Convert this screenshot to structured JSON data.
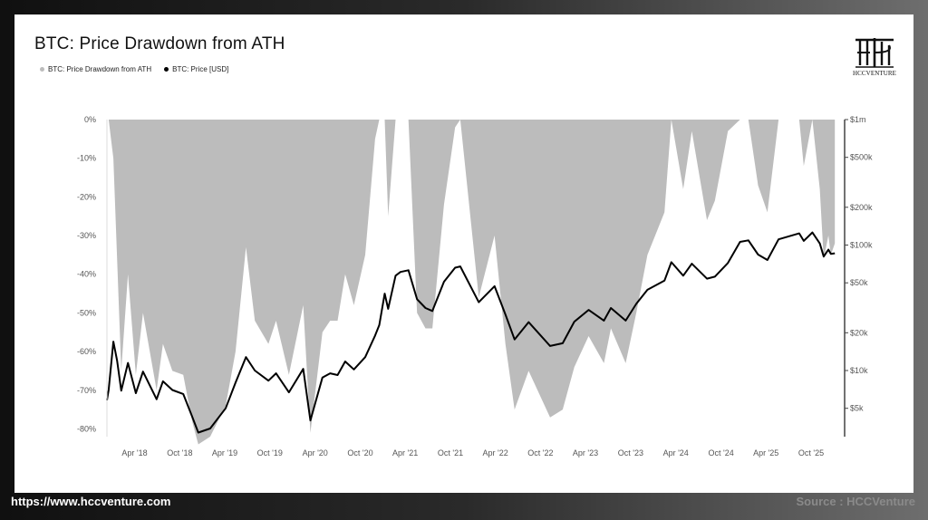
{
  "title": "BTC: Price Drawdown from ATH",
  "logo_text": "HCCVENTURE",
  "footer": {
    "url": "https://www.hccventure.com",
    "source": "Source : HCCVenture"
  },
  "colors": {
    "drawdown": "#bcbcbc",
    "price": "#000000",
    "axis": "#555555"
  },
  "chart_data": {
    "type": "area",
    "title": "BTC: Price Drawdown from ATH",
    "legend_position": "top-left",
    "grid": false,
    "x_ticks": [
      "Apr '18",
      "Oct '18",
      "Apr '19",
      "Oct '19",
      "Apr '20",
      "Oct '20",
      "Apr '21",
      "Oct '21",
      "Apr '22",
      "Oct '22",
      "Apr '23",
      "Oct '23",
      "Apr '24",
      "Oct '24",
      "Apr '25",
      "Oct '25"
    ],
    "left_axis": {
      "ticks": [
        "0%",
        "-10%",
        "-20%",
        "-30%",
        "-40%",
        "-50%",
        "-60%",
        "-70%",
        "-80%"
      ],
      "ylim": [
        -82,
        0
      ],
      "unit": "%"
    },
    "right_axis": {
      "scale": "log",
      "ticks": [
        "$1m",
        "$500k",
        "$200k",
        "$100k",
        "$50k",
        "$20k",
        "$10k",
        "$5k"
      ],
      "tick_values": [
        1000000,
        500000,
        200000,
        100000,
        50000,
        20000,
        10000,
        5000
      ]
    },
    "series": [
      {
        "name": "BTC: Price Drawdown from ATH",
        "axis": "left",
        "points": [
          [
            "2017-12-17",
            0
          ],
          [
            "2018-01-05",
            -10
          ],
          [
            "2018-02-06",
            -65
          ],
          [
            "2018-03-05",
            -40
          ],
          [
            "2018-04-06",
            -66
          ],
          [
            "2018-05-05",
            -50
          ],
          [
            "2018-06-29",
            -70
          ],
          [
            "2018-07-25",
            -58
          ],
          [
            "2018-09-01",
            -65
          ],
          [
            "2018-10-15",
            -66
          ],
          [
            "2018-11-20",
            -78
          ],
          [
            "2018-12-15",
            -84
          ],
          [
            "2019-02-01",
            -82
          ],
          [
            "2019-04-05",
            -74
          ],
          [
            "2019-05-15",
            -60
          ],
          [
            "2019-06-26",
            -33
          ],
          [
            "2019-08-01",
            -52
          ],
          [
            "2019-09-25",
            -58
          ],
          [
            "2019-10-26",
            -52
          ],
          [
            "2019-12-17",
            -66
          ],
          [
            "2020-02-13",
            -48
          ],
          [
            "2020-03-13",
            -81
          ],
          [
            "2020-05-01",
            -55
          ],
          [
            "2020-06-01",
            -52
          ],
          [
            "2020-07-01",
            -52
          ],
          [
            "2020-08-01",
            -40
          ],
          [
            "2020-09-05",
            -48
          ],
          [
            "2020-10-21",
            -35
          ],
          [
            "2020-11-30",
            -5
          ],
          [
            "2020-12-17",
            0
          ],
          [
            "2021-01-08",
            0
          ],
          [
            "2021-01-22",
            -25
          ],
          [
            "2021-02-21",
            0
          ],
          [
            "2021-03-13",
            0
          ],
          [
            "2021-04-14",
            0
          ],
          [
            "2021-05-19",
            -50
          ],
          [
            "2021-06-22",
            -54
          ],
          [
            "2021-07-20",
            -54
          ],
          [
            "2021-09-05",
            -22
          ],
          [
            "2021-10-20",
            -2
          ],
          [
            "2021-11-10",
            0
          ],
          [
            "2022-01-24",
            -46
          ],
          [
            "2022-03-29",
            -30
          ],
          [
            "2022-05-12",
            -58
          ],
          [
            "2022-06-18",
            -75
          ],
          [
            "2022-08-14",
            -65
          ],
          [
            "2022-11-09",
            -77
          ],
          [
            "2022-12-30",
            -75
          ],
          [
            "2023-02-15",
            -64
          ],
          [
            "2023-04-14",
            -56
          ],
          [
            "2023-06-15",
            -63
          ],
          [
            "2023-07-13",
            -54
          ],
          [
            "2023-09-11",
            -63
          ],
          [
            "2023-10-24",
            -50
          ],
          [
            "2023-12-08",
            -35
          ],
          [
            "2024-02-15",
            -24
          ],
          [
            "2024-03-14",
            0
          ],
          [
            "2024-05-01",
            -18
          ],
          [
            "2024-06-05",
            -3
          ],
          [
            "2024-08-05",
            -26
          ],
          [
            "2024-09-06",
            -21
          ],
          [
            "2024-10-29",
            -3
          ],
          [
            "2024-12-17",
            0
          ],
          [
            "2025-01-20",
            0
          ],
          [
            "2025-02-28",
            -17
          ],
          [
            "2025-04-07",
            -24
          ],
          [
            "2025-05-22",
            0
          ],
          [
            "2025-08-14",
            0
          ],
          [
            "2025-09-01",
            -12
          ],
          [
            "2025-10-06",
            0
          ],
          [
            "2025-11-05",
            -18
          ],
          [
            "2025-11-21",
            -36
          ],
          [
            "2025-12-10",
            -30
          ],
          [
            "2025-12-20",
            -35
          ],
          [
            "2026-01-05",
            -32
          ]
        ]
      },
      {
        "name": "BTC: Price [USD]",
        "axis": "right",
        "points": [
          [
            "2017-12-10",
            5800
          ],
          [
            "2017-12-17",
            7000
          ],
          [
            "2018-01-05",
            17000
          ],
          [
            "2018-01-20",
            12000
          ],
          [
            "2018-02-06",
            6900
          ],
          [
            "2018-03-05",
            11500
          ],
          [
            "2018-04-06",
            6600
          ],
          [
            "2018-05-05",
            9800
          ],
          [
            "2018-06-29",
            5900
          ],
          [
            "2018-07-25",
            8200
          ],
          [
            "2018-09-01",
            7000
          ],
          [
            "2018-10-15",
            6500
          ],
          [
            "2018-11-20",
            4300
          ],
          [
            "2018-12-15",
            3200
          ],
          [
            "2019-02-01",
            3450
          ],
          [
            "2019-04-05",
            5000
          ],
          [
            "2019-05-15",
            8000
          ],
          [
            "2019-06-26",
            12800
          ],
          [
            "2019-08-01",
            10000
          ],
          [
            "2019-09-25",
            8300
          ],
          [
            "2019-10-26",
            9500
          ],
          [
            "2019-12-17",
            6700
          ],
          [
            "2020-02-13",
            10300
          ],
          [
            "2020-03-13",
            4000
          ],
          [
            "2020-05-01",
            8800
          ],
          [
            "2020-06-01",
            9500
          ],
          [
            "2020-07-01",
            9200
          ],
          [
            "2020-08-01",
            11800
          ],
          [
            "2020-09-05",
            10200
          ],
          [
            "2020-10-21",
            12800
          ],
          [
            "2020-11-30",
            19000
          ],
          [
            "2020-12-17",
            23000
          ],
          [
            "2021-01-08",
            41000
          ],
          [
            "2021-01-22",
            31000
          ],
          [
            "2021-02-21",
            57000
          ],
          [
            "2021-03-13",
            61000
          ],
          [
            "2021-04-14",
            63000
          ],
          [
            "2021-05-19",
            37000
          ],
          [
            "2021-06-22",
            31500
          ],
          [
            "2021-07-20",
            29800
          ],
          [
            "2021-09-05",
            51000
          ],
          [
            "2021-10-20",
            66000
          ],
          [
            "2021-11-10",
            67500
          ],
          [
            "2022-01-24",
            35000
          ],
          [
            "2022-03-29",
            47000
          ],
          [
            "2022-05-12",
            28000
          ],
          [
            "2022-06-18",
            17700
          ],
          [
            "2022-08-14",
            24300
          ],
          [
            "2022-11-09",
            15700
          ],
          [
            "2022-12-30",
            16500
          ],
          [
            "2023-02-15",
            24500
          ],
          [
            "2023-04-14",
            30400
          ],
          [
            "2023-06-15",
            25000
          ],
          [
            "2023-07-13",
            31500
          ],
          [
            "2023-09-11",
            25000
          ],
          [
            "2023-10-24",
            34000
          ],
          [
            "2023-12-08",
            44000
          ],
          [
            "2024-02-15",
            52000
          ],
          [
            "2024-03-14",
            73000
          ],
          [
            "2024-05-01",
            57000
          ],
          [
            "2024-06-05",
            71000
          ],
          [
            "2024-08-05",
            54000
          ],
          [
            "2024-09-06",
            56000
          ],
          [
            "2024-10-29",
            72000
          ],
          [
            "2024-12-17",
            106000
          ],
          [
            "2025-01-20",
            109000
          ],
          [
            "2025-02-28",
            84000
          ],
          [
            "2025-04-07",
            76000
          ],
          [
            "2025-05-22",
            111000
          ],
          [
            "2025-08-14",
            124000
          ],
          [
            "2025-09-01",
            108000
          ],
          [
            "2025-10-06",
            126000
          ],
          [
            "2025-11-05",
            103000
          ],
          [
            "2025-11-21",
            81000
          ],
          [
            "2025-12-10",
            92000
          ],
          [
            "2025-12-20",
            85000
          ],
          [
            "2026-01-05",
            86000
          ]
        ]
      }
    ]
  }
}
